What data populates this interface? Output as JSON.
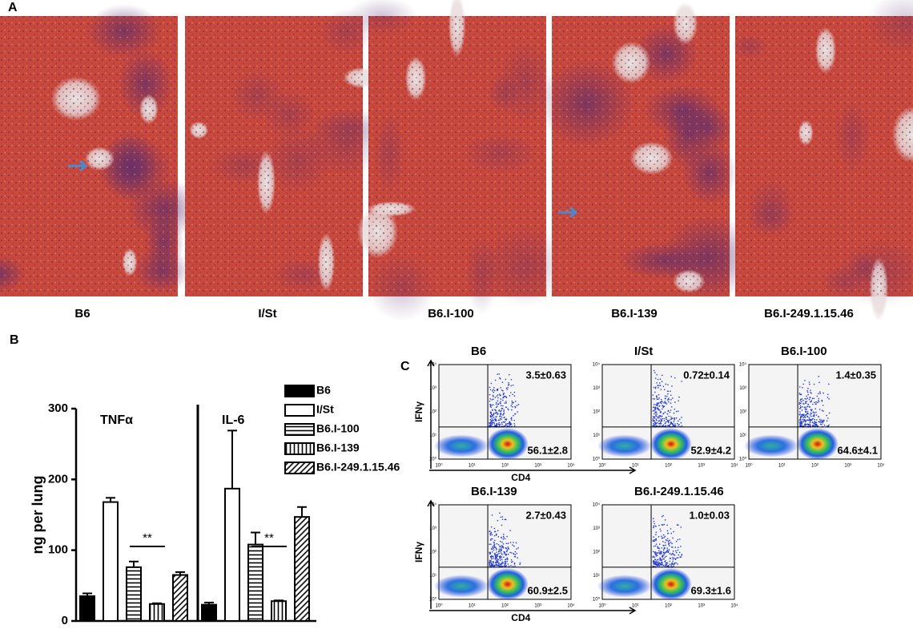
{
  "panel_a": {
    "label": "A",
    "captions": [
      "B6",
      "I/St",
      "B6.I-100",
      "B6.I-139",
      "B6.I-249.1.15.46"
    ]
  },
  "panel_b_label": "B",
  "chart_data": {
    "type": "bar",
    "ylabel": "ng per lung",
    "categories": [
      "TNFα",
      "IL-6"
    ],
    "ylim": [
      0,
      300
    ],
    "yticks": [
      0,
      100,
      200,
      300
    ],
    "annotations": [
      "**",
      "**"
    ],
    "series": [
      {
        "name": "B6",
        "color": "#000000",
        "fill": "solid",
        "values": [
          35,
          23
        ],
        "errors": [
          4,
          3
        ]
      },
      {
        "name": "I/St",
        "color": "#000000",
        "fill": "none",
        "values": [
          168,
          187
        ],
        "errors": [
          6,
          82
        ]
      },
      {
        "name": "B6.I-100",
        "color": "#000000",
        "fill": "horizontal",
        "values": [
          76,
          108
        ],
        "errors": [
          8,
          17
        ]
      },
      {
        "name": "B6.I-139",
        "color": "#000000",
        "fill": "vertical",
        "values": [
          24,
          28
        ],
        "errors": [
          1,
          1
        ]
      },
      {
        "name": "B6.I-249.1.15.46",
        "color": "#000000",
        "fill": "diagonal",
        "values": [
          65,
          147
        ],
        "errors": [
          4,
          14
        ]
      }
    ]
  },
  "panel_c": {
    "label": "C",
    "x_label": "CD4",
    "y_label": "IFNγ",
    "ticks": [
      "10⁰",
      "10¹",
      "10²",
      "10³",
      "10⁴"
    ],
    "plots": [
      {
        "title": "B6",
        "upper_right": "3.5±0.63",
        "lower_right": "56.1±2.8"
      },
      {
        "title": "I/St",
        "upper_right": "0.72±0.14",
        "lower_right": "52.9±4.2"
      },
      {
        "title": "B6.I-100",
        "upper_right": "1.4±0.35",
        "lower_right": "64.6±4.1"
      },
      {
        "title": "B6.I-139",
        "upper_right": "2.7±0.43",
        "lower_right": "60.9±2.5"
      },
      {
        "title": "B6.I-249.1.15.46",
        "upper_right": "1.0±0.03",
        "lower_right": "69.3±1.6"
      }
    ]
  }
}
